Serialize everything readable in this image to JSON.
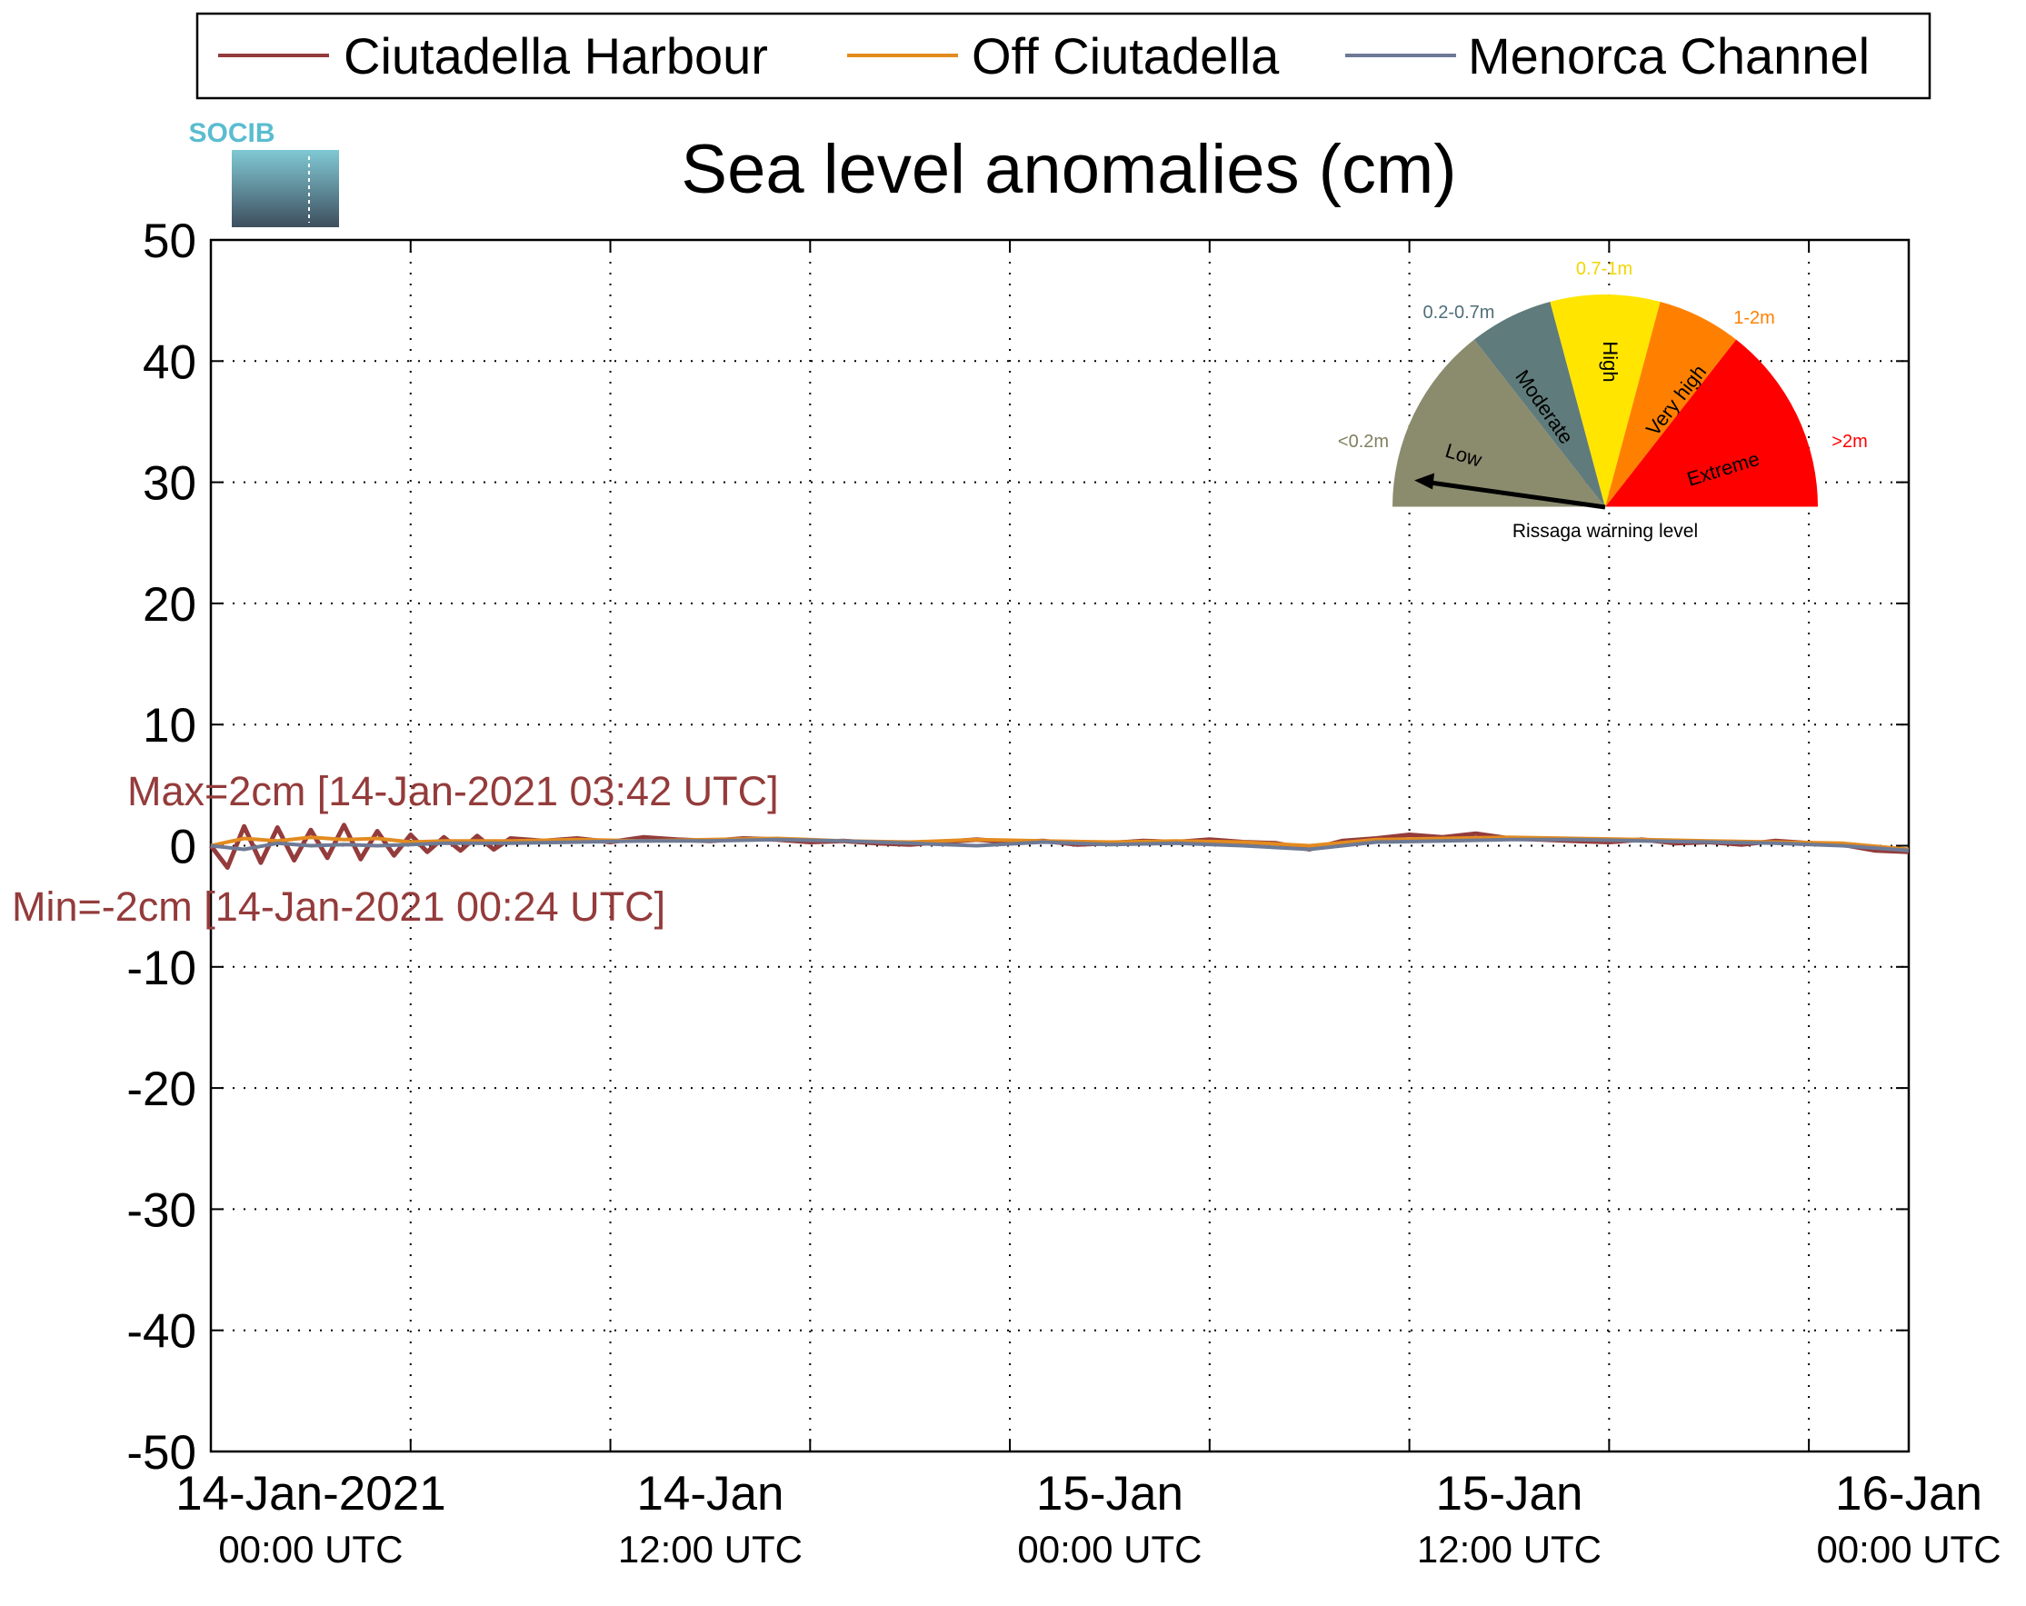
{
  "colors": {
    "harbour": "#943B3B",
    "off": "#E38B1F",
    "channel": "#6E7A95",
    "annotation": "#943B3B"
  },
  "legend": {
    "items": [
      {
        "label": "Ciutadella Harbour",
        "color": "#943B3B"
      },
      {
        "label": "Off Ciutadella",
        "color": "#E38B1F"
      },
      {
        "label": "Menorca Channel",
        "color": "#6E7A95"
      }
    ]
  },
  "logo": {
    "text": "SOCIB"
  },
  "chart_data": {
    "type": "line",
    "title": "Sea level anomalies (cm)",
    "xlabel": "",
    "ylabel": "",
    "x_unit": "hours since 14-Jan-2021 00:00 UTC",
    "xlim": [
      -3,
      48
    ],
    "ylim": [
      -50,
      50
    ],
    "y_ticks": [
      50,
      40,
      30,
      20,
      10,
      0,
      -10,
      -20,
      -30,
      -40,
      -50
    ],
    "y_tick_labels": [
      "50",
      "40",
      "30",
      "20",
      "10",
      "0",
      "-10",
      "-20",
      "-30",
      "-40",
      "-50"
    ],
    "x_ticks": [
      0,
      12,
      24,
      36,
      48
    ],
    "x_tick_labels": [
      [
        "14-Jan-2021",
        "00:00 UTC"
      ],
      [
        "14-Jan",
        "12:00 UTC"
      ],
      [
        "15-Jan",
        "00:00 UTC"
      ],
      [
        "15-Jan",
        "12:00 UTC"
      ],
      [
        "16-Jan",
        "00:00 UTC"
      ]
    ],
    "grid": true,
    "legend_position": "top",
    "series": [
      {
        "name": "Ciutadella Harbour",
        "x": [
          -3.0,
          -2.5,
          -2.0,
          -1.5,
          -1.0,
          -0.5,
          0.0,
          0.5,
          1.0,
          1.5,
          2.0,
          2.5,
          3.0,
          3.5,
          4.0,
          4.5,
          5.0,
          5.5,
          6.0,
          7.0,
          8.0,
          9.0,
          10.0,
          11.0,
          12.0,
          13.0,
          14.0,
          15.0,
          16.0,
          17.0,
          18.0,
          19.0,
          20.0,
          21.0,
          22.0,
          23.0,
          24.0,
          25.0,
          26.0,
          27.0,
          28.0,
          29.0,
          30.0,
          31.0,
          32.0,
          33.0,
          34.0,
          35.0,
          36.0,
          37.0,
          38.0,
          39.0,
          40.0,
          41.0,
          42.0,
          43.0,
          44.0,
          45.0,
          46.0,
          47.0,
          48.0
        ],
        "y": [
          0.0,
          -1.8,
          1.6,
          -1.4,
          1.5,
          -1.2,
          1.3,
          -1.0,
          1.7,
          -1.1,
          1.2,
          -0.8,
          0.9,
          -0.5,
          0.7,
          -0.4,
          0.8,
          -0.3,
          0.6,
          0.4,
          0.6,
          0.3,
          0.7,
          0.5,
          0.4,
          0.6,
          0.5,
          0.3,
          0.4,
          0.2,
          0.1,
          0.3,
          0.5,
          0.3,
          0.4,
          0.1,
          0.2,
          0.4,
          0.3,
          0.5,
          0.3,
          0.2,
          -0.3,
          0.4,
          0.6,
          0.9,
          0.7,
          1.0,
          0.6,
          0.5,
          0.4,
          0.3,
          0.5,
          0.2,
          0.3,
          0.1,
          0.4,
          0.2,
          0.1,
          -0.4,
          -0.5
        ]
      },
      {
        "name": "Off Ciutadella",
        "x": [
          -3.0,
          -2.0,
          -1.0,
          0.0,
          1.0,
          2.0,
          3.0,
          4.0,
          6.0,
          8.0,
          10.0,
          12.0,
          14.0,
          16.0,
          18.0,
          20.0,
          22.0,
          24.0,
          26.0,
          28.0,
          30.0,
          32.0,
          34.0,
          36.0,
          38.0,
          40.0,
          42.0,
          44.0,
          46.0,
          48.0
        ],
        "y": [
          0.0,
          0.6,
          0.4,
          0.7,
          0.5,
          0.6,
          0.3,
          0.4,
          0.4,
          0.5,
          0.4,
          0.5,
          0.6,
          0.4,
          0.3,
          0.5,
          0.4,
          0.3,
          0.4,
          0.3,
          0.0,
          0.5,
          0.6,
          0.7,
          0.6,
          0.5,
          0.4,
          0.3,
          0.2,
          -0.3
        ]
      },
      {
        "name": "Menorca Channel",
        "x": [
          -3.0,
          -2.0,
          -1.0,
          0.0,
          1.0,
          2.0,
          3.0,
          4.0,
          6.0,
          8.0,
          10.0,
          12.0,
          14.0,
          16.0,
          18.0,
          20.0,
          22.0,
          24.0,
          26.0,
          28.0,
          30.0,
          32.0,
          34.0,
          36.0,
          38.0,
          40.0,
          42.0,
          44.0,
          46.0,
          48.0
        ],
        "y": [
          0.0,
          -0.3,
          0.2,
          0.0,
          0.1,
          0.0,
          0.1,
          0.2,
          0.2,
          0.3,
          0.4,
          0.4,
          0.5,
          0.4,
          0.2,
          0.0,
          0.3,
          0.1,
          0.2,
          0.0,
          -0.3,
          0.3,
          0.4,
          0.5,
          0.5,
          0.4,
          0.3,
          0.2,
          0.0,
          -0.4
        ]
      }
    ],
    "annotations": {
      "max": "Max=2cm [14-Jan-2021 03:42 UTC]",
      "min": "Min=-2cm [14-Jan-2021 00:24 UTC]"
    }
  },
  "gauge": {
    "title": "Rissaga warning level",
    "current_level": "Low",
    "segments": [
      {
        "label": "Low",
        "range": "<0.2m",
        "color": "#8B8B6E",
        "range_color": "#808060"
      },
      {
        "label": "Moderate",
        "range": "0.2-0.7m",
        "color": "#607B7B",
        "range_color": "#4F6E7A"
      },
      {
        "label": "High",
        "range": "0.7-1m",
        "color": "#FFE500",
        "range_color": "#F2D600"
      },
      {
        "label": "Very high",
        "range": "1-2m",
        "color": "#FF8000",
        "range_color": "#FF7F00"
      },
      {
        "label": "Extreme",
        "range": ">2m",
        "color": "#FF0000",
        "range_color": "#FF0000"
      }
    ]
  }
}
